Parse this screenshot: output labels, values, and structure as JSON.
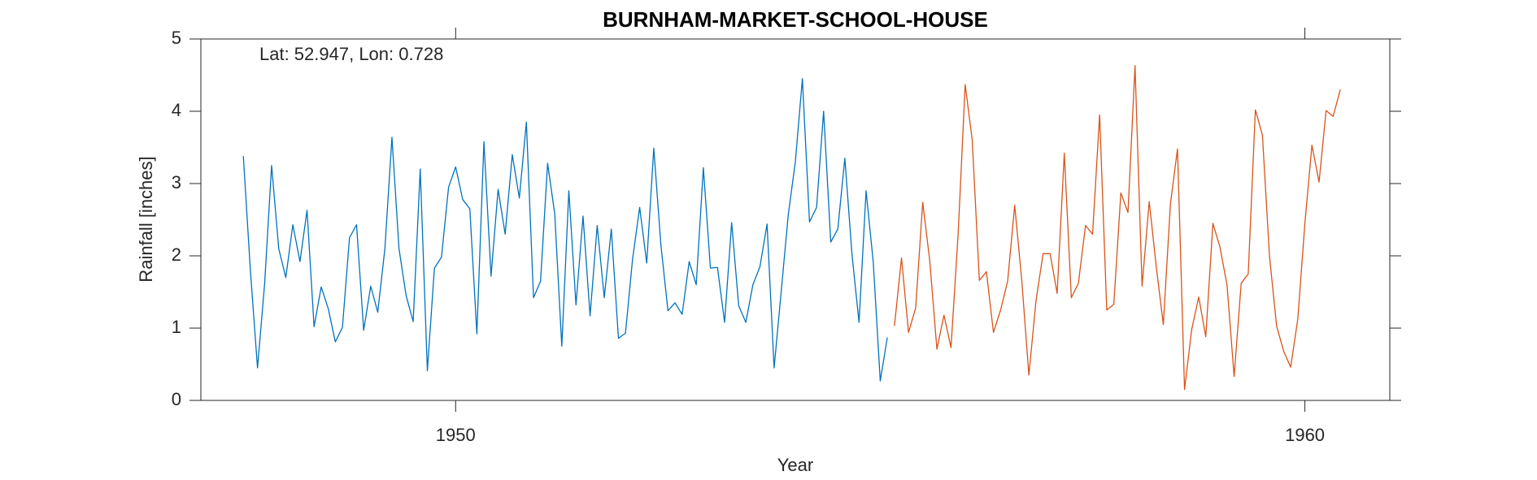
{
  "chart_data": {
    "type": "line",
    "title": "BURNHAM-MARKET-SCHOOL-HOUSE",
    "annotation": "Lat: 52.947, Lon: 0.728",
    "xlabel": "Year",
    "ylabel": "Rainfall [inches]",
    "xlim": [
      1947,
      1961
    ],
    "xticks": [
      1950,
      1960
    ],
    "ylim": [
      0,
      5
    ],
    "yticks": [
      0,
      1,
      2,
      3,
      4,
      5
    ],
    "grid": false,
    "series": [
      {
        "color": "#0072bd",
        "x": [
          1947.5,
          1947.583,
          1947.667,
          1947.75,
          1947.833,
          1947.917,
          1948,
          1948.083,
          1948.167,
          1948.25,
          1948.333,
          1948.417,
          1948.5,
          1948.583,
          1948.667,
          1948.75,
          1948.833,
          1948.917,
          1949,
          1949.083,
          1949.167,
          1949.25,
          1949.333,
          1949.417,
          1949.5,
          1949.583,
          1949.667,
          1949.75,
          1949.833,
          1949.917,
          1950,
          1950.083,
          1950.167,
          1950.25,
          1950.333,
          1950.417,
          1950.5,
          1950.583,
          1950.667,
          1950.75,
          1950.833,
          1950.917,
          1951,
          1951.083,
          1951.167,
          1951.25,
          1951.333,
          1951.417,
          1951.5,
          1951.583,
          1951.667,
          1951.75,
          1951.833,
          1951.917,
          1952,
          1952.083,
          1952.167,
          1952.25,
          1952.333,
          1952.417,
          1952.5,
          1952.583,
          1952.667,
          1952.75,
          1952.833,
          1952.917,
          1953,
          1953.083,
          1953.167,
          1953.25,
          1953.333,
          1953.417,
          1953.5,
          1953.583,
          1953.667,
          1953.75,
          1953.833,
          1953.917,
          1954,
          1954.083,
          1954.167,
          1954.25,
          1954.333,
          1954.417,
          1954.5,
          1954.583,
          1954.667,
          1954.75,
          1954.833,
          1954.917,
          1955,
          1955.083
        ],
        "values": [
          3.38,
          1.8,
          0.45,
          1.6,
          3.25,
          2.1,
          1.7,
          2.43,
          1.92,
          2.63,
          1.02,
          1.57,
          1.27,
          0.81,
          1.01,
          2.25,
          2.43,
          0.97,
          1.58,
          1.22,
          2.1,
          3.64,
          2.1,
          1.45,
          1.09,
          3.2,
          0.41,
          1.83,
          1.98,
          2.95,
          3.23,
          2.78,
          2.65,
          0.92,
          3.58,
          1.72,
          2.92,
          2.3,
          3.4,
          2.8,
          3.85,
          1.42,
          1.65,
          3.28,
          2.58,
          0.75,
          2.9,
          1.32,
          2.55,
          1.17,
          2.42,
          1.42,
          2.37,
          0.86,
          0.93,
          1.95,
          2.67,
          1.9,
          3.49,
          2.15,
          1.24,
          1.35,
          1.19,
          1.92,
          1.6,
          3.22,
          1.83,
          1.84,
          1.08,
          2.46,
          1.31,
          1.08,
          1.6,
          1.85,
          2.44,
          0.45,
          1.5,
          2.57,
          3.3,
          4.45,
          2.47,
          2.67,
          4.0,
          2.19,
          2.37,
          3.35,
          2.02,
          1.08,
          2.9,
          1.92,
          0.27,
          0.87
        ]
      },
      {
        "color": "#d95319",
        "x": [
          1955.167,
          1955.25,
          1955.333,
          1955.417,
          1955.5,
          1955.583,
          1955.667,
          1955.75,
          1955.833,
          1955.917,
          1956,
          1956.083,
          1956.167,
          1956.25,
          1956.333,
          1956.417,
          1956.5,
          1956.583,
          1956.667,
          1956.75,
          1956.833,
          1956.917,
          1957,
          1957.083,
          1957.167,
          1957.25,
          1957.333,
          1957.417,
          1957.5,
          1957.583,
          1957.667,
          1957.75,
          1957.833,
          1957.917,
          1958,
          1958.083,
          1958.167,
          1958.25,
          1958.333,
          1958.417,
          1958.5,
          1958.583,
          1958.667,
          1958.75,
          1958.833,
          1958.917,
          1959,
          1959.083,
          1959.167,
          1959.25,
          1959.333,
          1959.417,
          1959.5,
          1959.583,
          1959.667,
          1959.75,
          1959.833,
          1959.917,
          1960,
          1960.083,
          1960.167,
          1960.25,
          1960.333,
          1960.417
        ],
        "values": [
          1.03,
          1.97,
          0.94,
          1.28,
          2.74,
          1.93,
          0.71,
          1.18,
          0.73,
          2.3,
          4.37,
          3.6,
          1.66,
          1.78,
          0.94,
          1.25,
          1.65,
          2.7,
          1.65,
          0.35,
          1.37,
          2.03,
          2.03,
          1.48,
          3.42,
          1.42,
          1.62,
          2.42,
          2.3,
          3.95,
          1.25,
          1.33,
          2.87,
          2.6,
          4.63,
          1.58,
          2.75,
          1.85,
          1.05,
          2.72,
          3.48,
          0.15,
          0.98,
          1.43,
          0.88,
          2.45,
          2.12,
          1.6,
          0.33,
          1.62,
          1.75,
          4.02,
          3.67,
          2.0,
          1.03,
          0.68,
          0.46,
          1.13,
          2.45,
          3.53,
          3.02,
          4.01,
          3.93,
          4.3
        ]
      }
    ]
  }
}
